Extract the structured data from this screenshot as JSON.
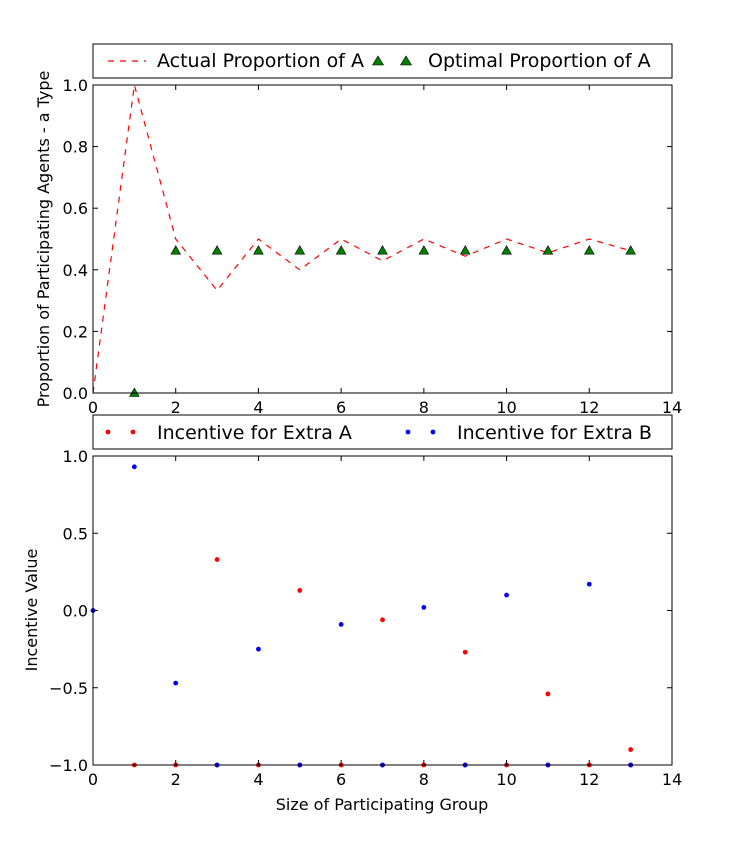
{
  "chart_data": [
    {
      "type": "line",
      "ylabel": "Proportion of Participating Agents - a Type",
      "xlabel": "",
      "xlim": [
        0,
        14
      ],
      "ylim": [
        0.0,
        1.0
      ],
      "xticks": [
        "0",
        "2",
        "4",
        "6",
        "8",
        "10",
        "12",
        "14"
      ],
      "yticks": [
        "0.0",
        "0.2",
        "0.4",
        "0.6",
        "0.8",
        "1.0"
      ],
      "legend_position": "above plot",
      "grid": false,
      "series": [
        {
          "name": "Actual Proportion of A",
          "style": "dashed-line",
          "color": "#ff0000",
          "x": [
            0,
            1,
            2,
            3,
            4,
            5,
            6,
            7,
            8,
            9,
            10,
            11,
            12,
            13
          ],
          "y": [
            0.0,
            1.0,
            0.5,
            0.333,
            0.5,
            0.4,
            0.5,
            0.429,
            0.5,
            0.444,
            0.5,
            0.455,
            0.5,
            0.462
          ]
        },
        {
          "name": "Optimal Proportion of A",
          "style": "triangle-marker",
          "color": "#008000",
          "x": [
            1,
            2,
            3,
            4,
            5,
            6,
            7,
            8,
            9,
            10,
            11,
            12,
            13
          ],
          "y": [
            0.0,
            0.462,
            0.462,
            0.462,
            0.462,
            0.462,
            0.462,
            0.462,
            0.462,
            0.462,
            0.462,
            0.462,
            0.462
          ]
        }
      ]
    },
    {
      "type": "scatter",
      "xlabel": "Size of Participating Group",
      "ylabel": "Incentive Value",
      "xlim": [
        0,
        14
      ],
      "ylim": [
        -1.0,
        1.0
      ],
      "xticks": [
        "0",
        "2",
        "4",
        "6",
        "8",
        "10",
        "12",
        "14"
      ],
      "yticks": [
        "−1.0",
        "−0.5",
        "0.0",
        "0.5",
        "1.0"
      ],
      "legend_position": "above plot",
      "grid": false,
      "series": [
        {
          "name": "Incentive for Extra A",
          "color": "#ff0000",
          "x": [
            1,
            2,
            3,
            4,
            5,
            6,
            7,
            8,
            9,
            10,
            11,
            12,
            13,
            3,
            5,
            7,
            9,
            11,
            13
          ],
          "y": [
            -1.0,
            -1.0,
            0.33,
            -1.0,
            0.13,
            -1.0,
            -0.06,
            -1.0,
            -0.27,
            -1.0,
            -0.54,
            -1.0,
            -0.9,
            -1.0,
            -1.0,
            -1.0,
            -1.0,
            -1.0,
            -1.0
          ]
        },
        {
          "name": "Incentive for Extra B",
          "color": "#0000ff",
          "x": [
            0,
            1,
            2,
            3,
            4,
            5,
            6,
            7,
            8,
            9,
            10,
            11,
            12,
            13
          ],
          "y": [
            0.0,
            0.93,
            -0.47,
            -1.0,
            -0.25,
            -1.0,
            -0.09,
            -1.0,
            0.02,
            -1.0,
            0.1,
            -1.0,
            0.17,
            -1.0
          ]
        }
      ]
    }
  ]
}
